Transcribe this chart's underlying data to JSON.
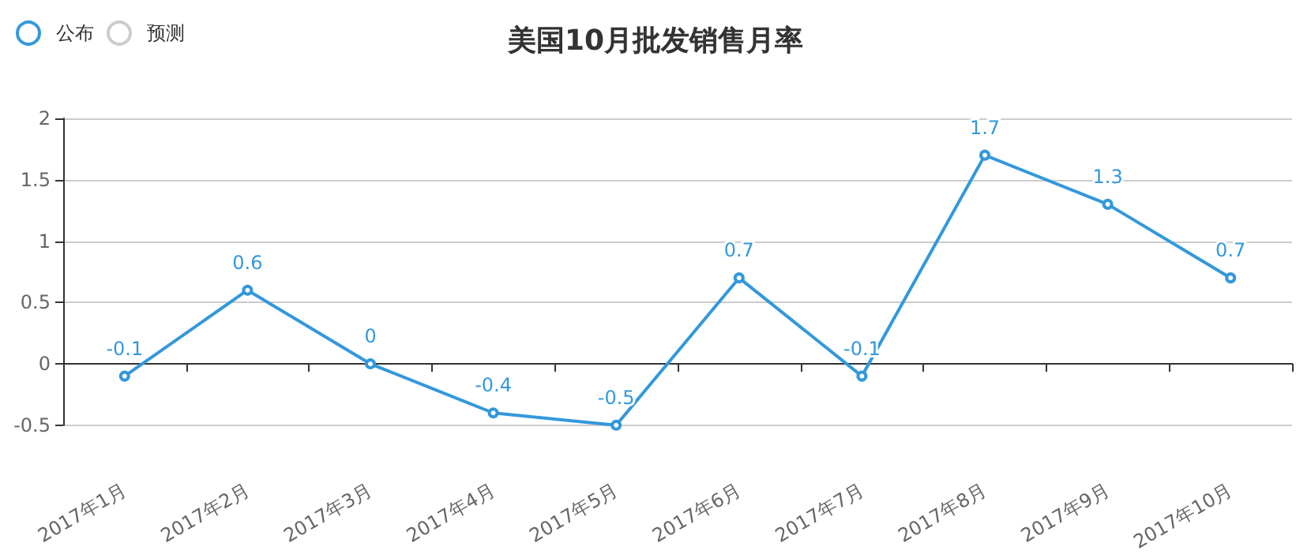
{
  "chart_data": {
    "type": "line",
    "title": "美国10月批发销售月率",
    "categories": [
      "2017年1月",
      "2017年2月",
      "2017年3月",
      "2017年4月",
      "2017年5月",
      "2017年6月",
      "2017年7月",
      "2017年8月",
      "2017年9月",
      "2017年10月"
    ],
    "series": [
      {
        "name": "公布",
        "color": "#3398db",
        "values": [
          -0.1,
          0.6,
          0,
          -0.4,
          -0.5,
          0.7,
          -0.1,
          1.7,
          1.3,
          0.7
        ]
      },
      {
        "name": "预测",
        "color": "#cccccc",
        "values": [
          null,
          null,
          null,
          null,
          null,
          null,
          null,
          null,
          null,
          null
        ]
      }
    ],
    "ylim": [
      -0.5,
      2
    ],
    "yticks": [
      -0.5,
      0,
      0.5,
      1,
      1.5,
      2
    ],
    "grid": "y",
    "legend": "top left",
    "marker": "circle",
    "line_style": "solid",
    "data_labels": true
  }
}
